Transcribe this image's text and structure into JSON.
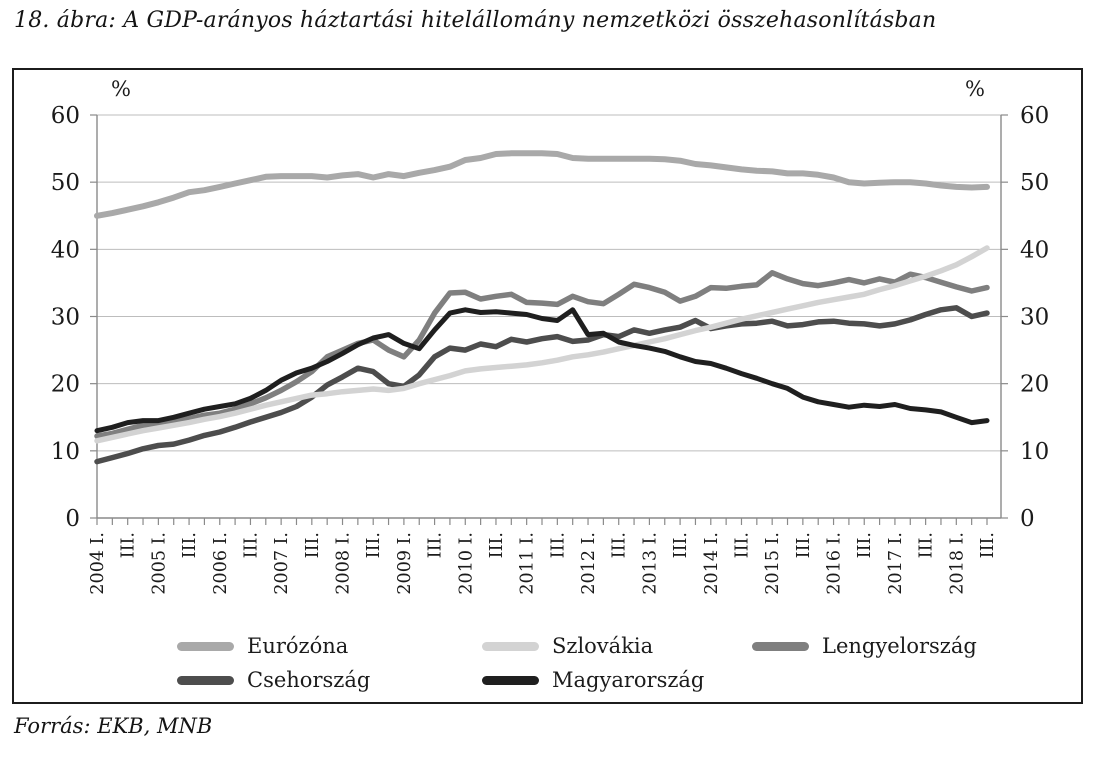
{
  "title": "18. ábra: A GDP-arányos háztartási hitelállomány nemzetközi összehasonlításban",
  "source": "Forrás: EKB, MNB",
  "chart_data": {
    "type": "line",
    "title": "",
    "y_unit": "%",
    "ylim": [
      0,
      60
    ],
    "y_ticks": [
      0,
      10,
      20,
      30,
      40,
      50,
      60
    ],
    "grid": "horizontal",
    "legend_position": "bottom-inside",
    "x_description": "Quarterly, 2004 Q1 - 2018 Q3, tick labels on every other quarter",
    "x_tick_labels": [
      "2004 I.",
      "III.",
      "2005 I.",
      "III.",
      "2006 I.",
      "III.",
      "2007 I.",
      "III.",
      "2008 I.",
      "III.",
      "2009 I.",
      "III.",
      "2010 I.",
      "III.",
      "2011 I.",
      "III.",
      "2012 I.",
      "III.",
      "2013 I.",
      "III.",
      "2014 I.",
      "III.",
      "2015 I.",
      "III.",
      "2016 I.",
      "III.",
      "2017 I.",
      "III.",
      "2018 I.",
      "III."
    ],
    "x_label_step": 2,
    "series": [
      {
        "name": "Eurózóna",
        "color": "#a9a9a9",
        "width": 6,
        "values": [
          45.0,
          45.4,
          45.9,
          46.4,
          47.0,
          47.7,
          48.5,
          48.8,
          49.3,
          49.8,
          50.3,
          50.8,
          50.9,
          50.9,
          50.9,
          50.7,
          51.0,
          51.2,
          50.7,
          51.2,
          50.9,
          51.4,
          51.8,
          52.3,
          53.3,
          53.6,
          54.2,
          54.3,
          54.3,
          54.3,
          54.2,
          53.6,
          53.5,
          53.5,
          53.5,
          53.5,
          53.5,
          53.4,
          53.2,
          52.7,
          52.5,
          52.2,
          51.9,
          51.7,
          51.6,
          51.3,
          51.3,
          51.1,
          50.7,
          50.0,
          49.8,
          49.9,
          50.0,
          50.0,
          49.8,
          49.5,
          49.3,
          49.2,
          49.3
        ]
      },
      {
        "name": "Szlovákia",
        "color": "#d3d3d3",
        "width": 5.5,
        "values": [
          11.5,
          12.0,
          12.5,
          13.0,
          13.4,
          13.8,
          14.2,
          14.7,
          15.1,
          15.6,
          16.2,
          16.8,
          17.3,
          17.8,
          18.3,
          18.5,
          18.8,
          19.0,
          19.2,
          19.0,
          19.3,
          20.0,
          20.6,
          21.2,
          21.9,
          22.2,
          22.4,
          22.6,
          22.8,
          23.1,
          23.5,
          24.0,
          24.3,
          24.7,
          25.2,
          25.7,
          26.2,
          26.7,
          27.3,
          27.9,
          28.4,
          29.0,
          29.6,
          30.1,
          30.6,
          31.1,
          31.6,
          32.1,
          32.5,
          32.9,
          33.3,
          34.0,
          34.6,
          35.3,
          36.0,
          36.8,
          37.7,
          38.9,
          40.2
        ]
      },
      {
        "name": "Lengyelország",
        "color": "#7f7f7f",
        "width": 5.5,
        "values": [
          12.2,
          12.6,
          13.2,
          13.8,
          14.0,
          14.3,
          14.8,
          15.3,
          15.6,
          16.2,
          17.0,
          17.9,
          19.0,
          20.3,
          21.8,
          24.0,
          25.0,
          26.0,
          26.5,
          25.0,
          24.0,
          26.5,
          30.5,
          33.5,
          33.6,
          32.6,
          33.0,
          33.3,
          32.1,
          32.0,
          31.8,
          33.0,
          32.2,
          31.9,
          33.3,
          34.8,
          34.3,
          33.6,
          32.3,
          33.0,
          34.3,
          34.2,
          34.5,
          34.7,
          36.5,
          35.6,
          34.9,
          34.6,
          35.0,
          35.5,
          35.0,
          35.6,
          35.1,
          36.3,
          35.8,
          35.1,
          34.4,
          33.8,
          34.3
        ]
      },
      {
        "name": "Csehország",
        "color": "#4d4d4d",
        "width": 5.5,
        "values": [
          8.4,
          9.0,
          9.6,
          10.3,
          10.8,
          11.0,
          11.6,
          12.3,
          12.8,
          13.5,
          14.3,
          15.0,
          15.7,
          16.6,
          18.0,
          19.8,
          21.0,
          22.3,
          21.8,
          20.0,
          19.6,
          21.3,
          24.0,
          25.3,
          25.0,
          25.9,
          25.5,
          26.6,
          26.2,
          26.7,
          27.0,
          26.3,
          26.5,
          27.3,
          27.0,
          28.0,
          27.5,
          28.0,
          28.4,
          29.4,
          28.2,
          28.6,
          28.9,
          29.0,
          29.3,
          28.6,
          28.8,
          29.2,
          29.3,
          29.0,
          28.9,
          28.6,
          28.9,
          29.5,
          30.3,
          31.0,
          31.3,
          30.0,
          30.5
        ]
      },
      {
        "name": "Magyarország",
        "color": "#1f1f1f",
        "width": 5,
        "values": [
          13.0,
          13.5,
          14.2,
          14.5,
          14.5,
          15.0,
          15.6,
          16.2,
          16.6,
          17.0,
          17.8,
          19.0,
          20.5,
          21.6,
          22.3,
          23.3,
          24.5,
          25.8,
          26.8,
          27.3,
          26.0,
          25.2,
          28.0,
          30.5,
          31.0,
          30.6,
          30.7,
          30.5,
          30.3,
          29.7,
          29.4,
          31.0,
          27.3,
          27.5,
          26.2,
          25.7,
          25.3,
          24.8,
          24.0,
          23.3,
          23.0,
          22.3,
          21.5,
          20.8,
          20.0,
          19.3,
          18.0,
          17.3,
          16.9,
          16.5,
          16.8,
          16.6,
          16.9,
          16.3,
          16.1,
          15.8,
          15.0,
          14.2,
          14.5
        ]
      }
    ],
    "draw_order": [
      0,
      2,
      3,
      1,
      4
    ],
    "legend_rows": [
      [
        0,
        1,
        2
      ],
      [
        3,
        4
      ]
    ]
  }
}
